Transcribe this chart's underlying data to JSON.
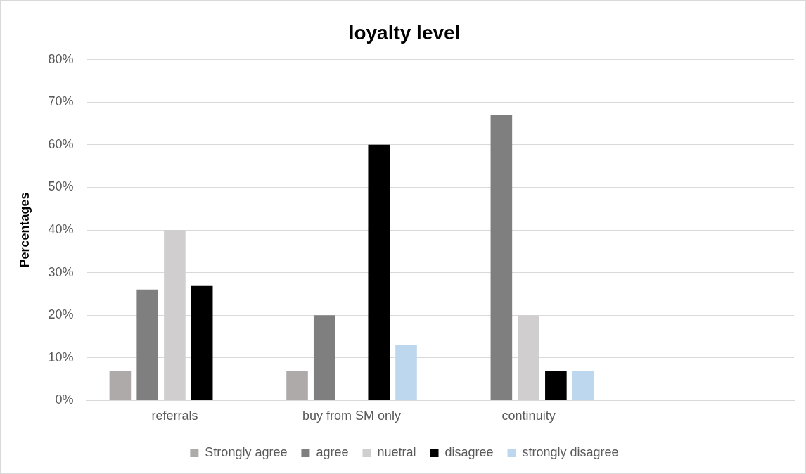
{
  "chart_data": {
    "type": "bar",
    "title": "loyalty level",
    "ylabel": "Percentages",
    "categories": [
      "referrals",
      "buy from SM only",
      "continuity",
      null
    ],
    "series": [
      {
        "name": "Strongly agree",
        "color": "#aeaaaa",
        "values": [
          7,
          7,
          null,
          null
        ]
      },
      {
        "name": "agree",
        "color": "#7f7f7f",
        "values": [
          26,
          20,
          67,
          null
        ]
      },
      {
        "name": "nuetral",
        "color": "#d0cece",
        "values": [
          40,
          null,
          20,
          null
        ]
      },
      {
        "name": "disagree",
        "color": "#000000",
        "values": [
          27,
          60,
          7,
          null
        ]
      },
      {
        "name": "strongly disagree",
        "color": "#bdd7ee",
        "values": [
          null,
          13,
          7,
          null
        ]
      }
    ],
    "ylim": [
      0,
      80
    ],
    "yticks": [
      {
        "value": 0,
        "label": "0%"
      },
      {
        "value": 10,
        "label": "10%"
      },
      {
        "value": 20,
        "label": "20%"
      },
      {
        "value": 30,
        "label": "30%"
      },
      {
        "value": 40,
        "label": "40%"
      },
      {
        "value": 50,
        "label": "50%"
      },
      {
        "value": 60,
        "label": "60%"
      },
      {
        "value": 70,
        "label": "70%"
      },
      {
        "value": 80,
        "label": "80%"
      }
    ],
    "grid": "y",
    "legend": "bottom"
  }
}
